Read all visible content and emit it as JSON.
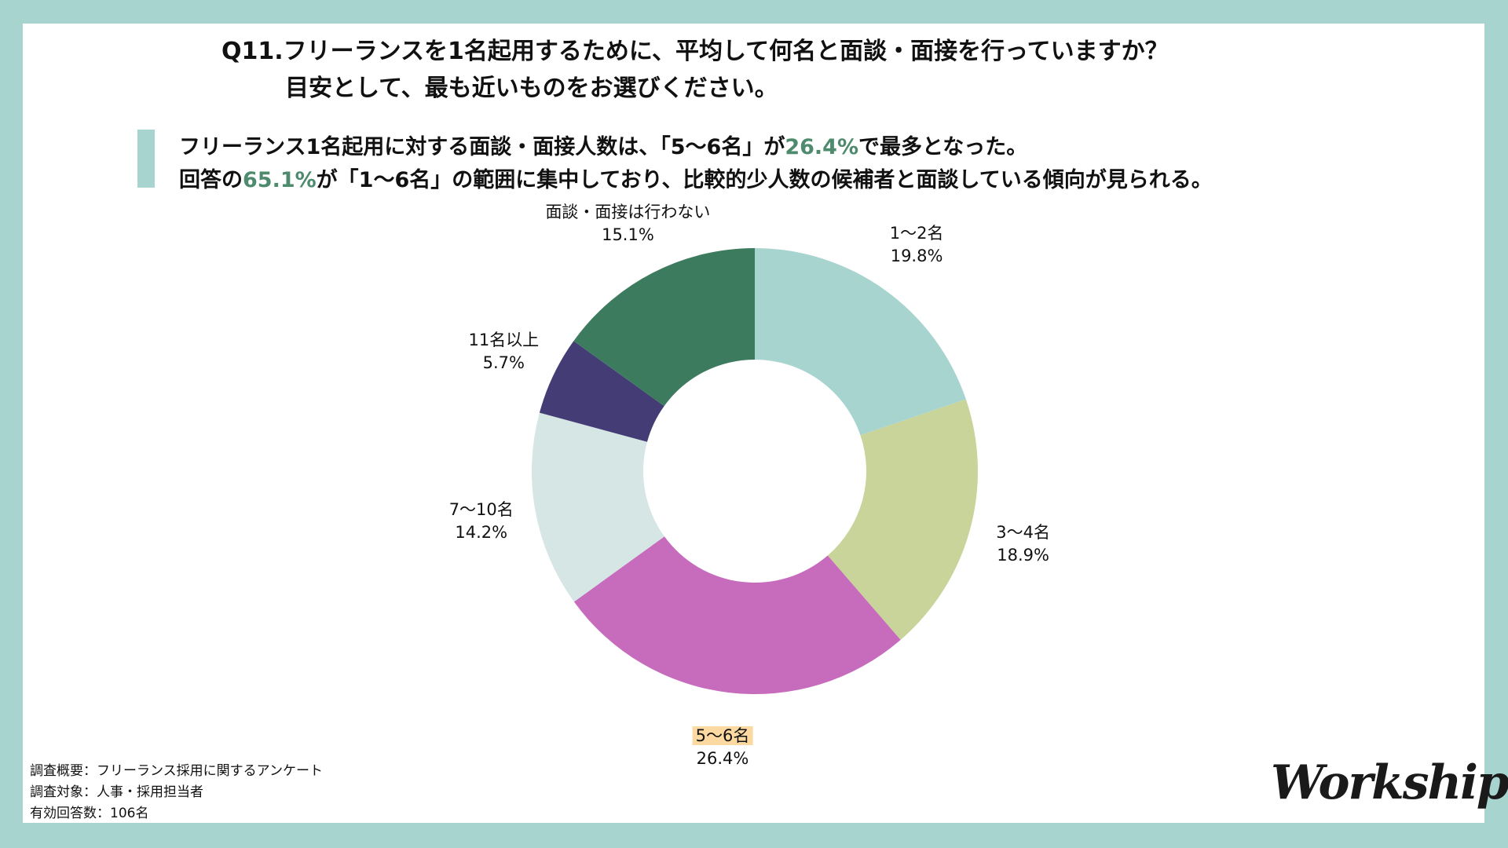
{
  "title": {
    "line1": "Q11.フリーランスを1名起用するために、平均して何名と面談・面接を行っていますか？",
    "line2": "目安として、最も近いものをお選びください。"
  },
  "summary": {
    "line1": {
      "a": "フリーランス1名起用に対する面談・面接人数は、「5〜6名」が",
      "b": "26.4%",
      "c": "で最多となった。"
    },
    "line2": {
      "a": "回答の",
      "b": "65.1%",
      "c": "が「1〜6名」の範囲に集中しており、比較的少人数の候補者と面談している傾向が見られる。"
    }
  },
  "chart_data": {
    "type": "pie",
    "subtype": "donut",
    "categories": [
      "1〜2名",
      "3〜4名",
      "5〜6名",
      "7〜10名",
      "11名以上",
      "面談・面接は行わない"
    ],
    "values": [
      19.8,
      18.9,
      26.4,
      14.2,
      5.7,
      15.1
    ],
    "labels": [
      "19.8%",
      "18.9%",
      "26.4%",
      "14.2%",
      "5.7%",
      "15.1%"
    ],
    "colors": [
      "#a8d4d0",
      "#c8d49a",
      "#c76bbd",
      "#d5e6e4",
      "#433c75",
      "#3c7b5e"
    ],
    "highlight": "5〜6名",
    "highlight_color": "#fcd9a0"
  },
  "footer": {
    "overview": "調査概要：フリーランス採用に関するアンケート",
    "target": "調査対象：人事・採用担当者",
    "count": "有効回答数：106名"
  },
  "logo": "Workship"
}
